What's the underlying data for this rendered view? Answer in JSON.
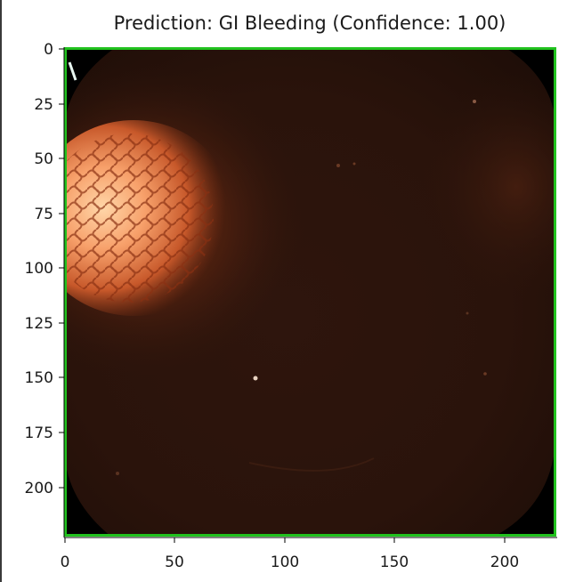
{
  "title": "Prediction: GI Bleeding (Confidence: 1.00)",
  "prediction": {
    "label": "GI Bleeding",
    "confidence": 1.0
  },
  "x_axis": {
    "ticks": [
      "0",
      "50",
      "100",
      "150",
      "200"
    ]
  },
  "y_axis": {
    "ticks": [
      "0",
      "25",
      "50",
      "75",
      "100",
      "125",
      "150",
      "175",
      "200"
    ]
  },
  "image": {
    "kind": "capsule endoscopy frame",
    "border_color": "#21c21e"
  }
}
